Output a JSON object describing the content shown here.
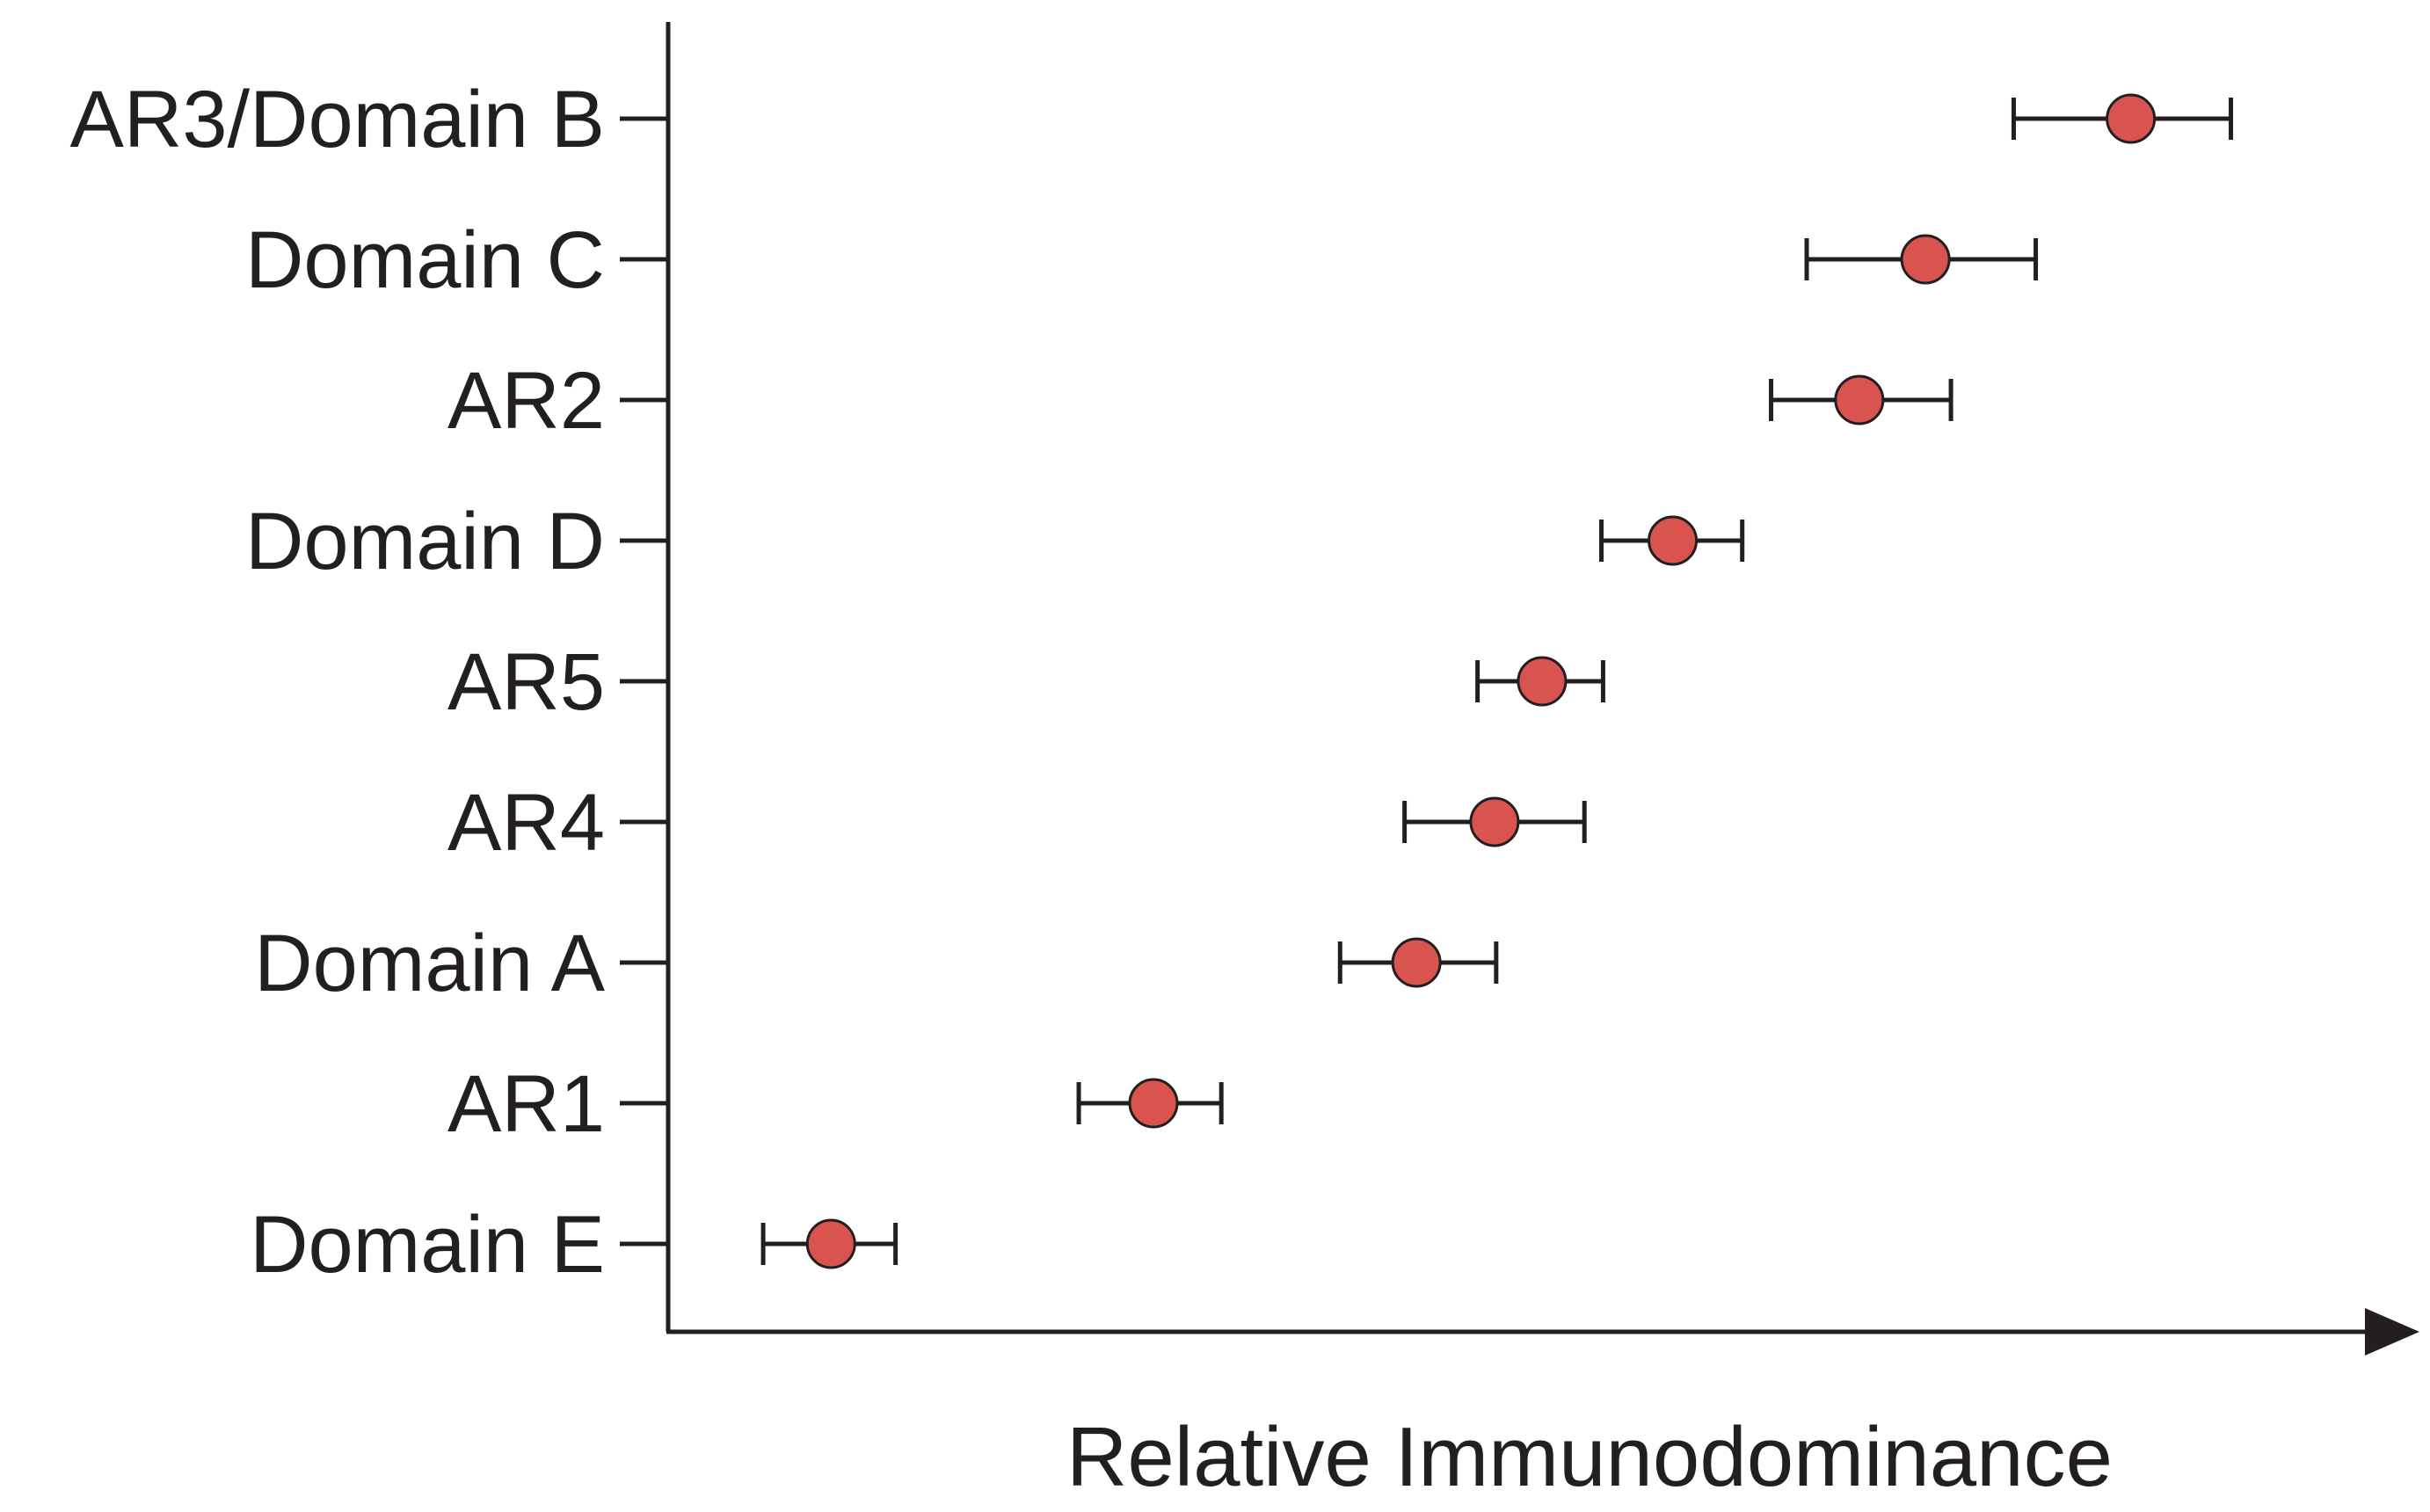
{
  "chart_data": {
    "type": "scatter",
    "title": "",
    "xlabel": "Relative Immunodominance",
    "ylabel": "",
    "xlim": [
      0,
      100
    ],
    "x_ticks_shown": false,
    "grid": false,
    "legend": "none",
    "marker_color": "#d9534f",
    "marker_edge_color": "#231f20",
    "axis_color": "#231f20",
    "categories": [
      "AR3/Domain B",
      "Domain C",
      "AR2",
      "Domain D",
      "AR5",
      "AR4",
      "Domain A",
      "AR1",
      "Domain E"
    ],
    "points": [
      {
        "label": "AR3/Domain B",
        "value": 86.2,
        "err_low": 79.3,
        "err_high": 92.1
      },
      {
        "label": "Domain C",
        "value": 74.1,
        "err_low": 67.1,
        "err_high": 80.6
      },
      {
        "label": "AR2",
        "value": 70.2,
        "err_low": 65.0,
        "err_high": 75.6
      },
      {
        "label": "Domain D",
        "value": 59.2,
        "err_low": 55.0,
        "err_high": 63.3
      },
      {
        "label": "AR5",
        "value": 51.5,
        "err_low": 47.7,
        "err_high": 55.1
      },
      {
        "label": "AR4",
        "value": 48.7,
        "err_low": 43.4,
        "err_high": 54.0
      },
      {
        "label": "Domain A",
        "value": 44.1,
        "err_low": 39.6,
        "err_high": 48.8
      },
      {
        "label": "AR1",
        "value": 28.6,
        "err_low": 24.2,
        "err_high": 32.6
      },
      {
        "label": "Domain E",
        "value": 9.6,
        "err_low": 5.6,
        "err_high": 13.4
      }
    ]
  }
}
